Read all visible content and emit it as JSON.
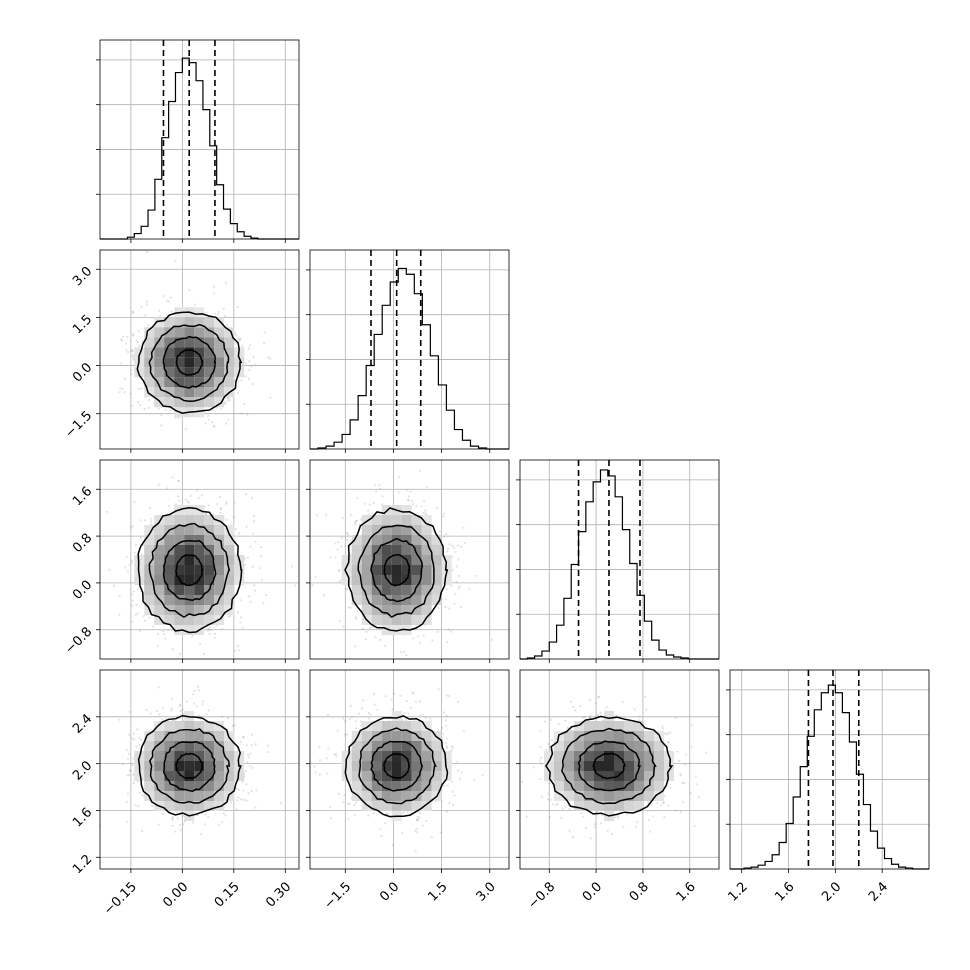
{
  "chart_data": {
    "type": "corner",
    "grid": true,
    "parameters": [
      {
        "index": 0,
        "range": [
          -0.24,
          0.34
        ],
        "ticks": [
          -0.15,
          0.0,
          0.15,
          0.3
        ],
        "tick_labels": [
          "−0.15",
          "0.00",
          "0.15",
          "0.30"
        ],
        "quantiles": [
          -0.055,
          0.02,
          0.095
        ],
        "hist_bins": [
          -0.24,
          -0.22,
          -0.2,
          -0.18,
          -0.16,
          -0.14,
          -0.12,
          -0.1,
          -0.08,
          -0.06,
          -0.04,
          -0.02,
          0.0,
          0.02,
          0.04,
          0.06,
          0.08,
          0.1,
          0.12,
          0.14,
          0.16,
          0.18,
          0.2,
          0.22,
          0.24,
          0.26,
          0.28,
          0.3,
          0.32,
          0.34
        ],
        "hist_counts": [
          0,
          0,
          0,
          0,
          2,
          6,
          14,
          32,
          66,
          112,
          152,
          184,
          200,
          195,
          175,
          143,
          103,
          60,
          33,
          17,
          8,
          3,
          1,
          0,
          0,
          0,
          0,
          0,
          0
        ],
        "hist_max": 220,
        "mean": 0.02,
        "sd": 0.075
      },
      {
        "index": 1,
        "range": [
          -2.6,
          3.6
        ],
        "ticks": [
          -1.5,
          0.0,
          1.5,
          3.0
        ],
        "tick_labels": [
          "−1.5",
          "0.0",
          "1.5",
          "3.0"
        ],
        "quantiles": [
          -0.7,
          0.1,
          0.85
        ],
        "hist_bins": [
          -2.6,
          -2.35,
          -2.1,
          -1.85,
          -1.6,
          -1.35,
          -1.1,
          -0.85,
          -0.6,
          -0.35,
          -0.1,
          0.15,
          0.4,
          0.65,
          0.9,
          1.15,
          1.4,
          1.65,
          1.9,
          2.15,
          2.4,
          2.65,
          2.9,
          3.15,
          3.4,
          3.6
        ],
        "hist_counts": [
          0,
          1,
          3,
          7,
          15,
          30,
          55,
          86,
          118,
          148,
          172,
          186,
          180,
          160,
          128,
          96,
          66,
          40,
          20,
          9,
          3,
          1,
          0,
          0,
          0
        ],
        "hist_max": 205,
        "mean": 0.1,
        "sd": 0.78
      },
      {
        "index": 2,
        "range": [
          -1.3,
          2.1
        ],
        "ticks": [
          -0.8,
          0.0,
          0.8,
          1.6
        ],
        "tick_labels": [
          "−0.8",
          "0.0",
          "0.8",
          "1.6"
        ],
        "quantiles": [
          -0.3,
          0.22,
          0.75
        ],
        "hist_bins": [
          -1.3,
          -1.175,
          -1.05,
          -0.925,
          -0.8,
          -0.675,
          -0.55,
          -0.425,
          -0.3,
          -0.175,
          -0.05,
          0.075,
          0.2,
          0.325,
          0.45,
          0.575,
          0.7,
          0.825,
          0.95,
          1.075,
          1.2,
          1.325,
          1.45,
          1.575,
          1.7,
          1.825,
          1.95,
          2.1
        ],
        "hist_counts": [
          0,
          1,
          3,
          8,
          17,
          34,
          61,
          95,
          128,
          158,
          178,
          190,
          184,
          163,
          130,
          96,
          64,
          38,
          19,
          9,
          4,
          2,
          1,
          0,
          0,
          0,
          0
        ],
        "hist_max": 200,
        "mean": 0.22,
        "sd": 0.52
      },
      {
        "index": 3,
        "range": [
          1.1,
          2.8
        ],
        "ticks": [
          1.2,
          1.6,
          2.0,
          2.4
        ],
        "tick_labels": [
          "1.2",
          "1.6",
          "2.0",
          "2.4"
        ],
        "quantiles": [
          1.77,
          1.98,
          2.2
        ],
        "hist_bins": [
          1.1,
          1.16,
          1.22,
          1.28,
          1.34,
          1.4,
          1.46,
          1.52,
          1.58,
          1.64,
          1.7,
          1.76,
          1.82,
          1.88,
          1.94,
          2.0,
          2.06,
          2.12,
          2.18,
          2.24,
          2.3,
          2.36,
          2.42,
          2.48,
          2.54,
          2.6,
          2.66,
          2.72,
          2.8
        ],
        "hist_counts": [
          0,
          0,
          1,
          2,
          4,
          8,
          15,
          28,
          48,
          76,
          108,
          140,
          168,
          186,
          194,
          186,
          165,
          134,
          100,
          68,
          40,
          22,
          11,
          5,
          2,
          1,
          0,
          0
        ],
        "hist_max": 210,
        "mean": 1.98,
        "sd": 0.21
      }
    ],
    "contour_levels_sigma": [
      0.5,
      1.0,
      1.5,
      2.0
    ]
  }
}
